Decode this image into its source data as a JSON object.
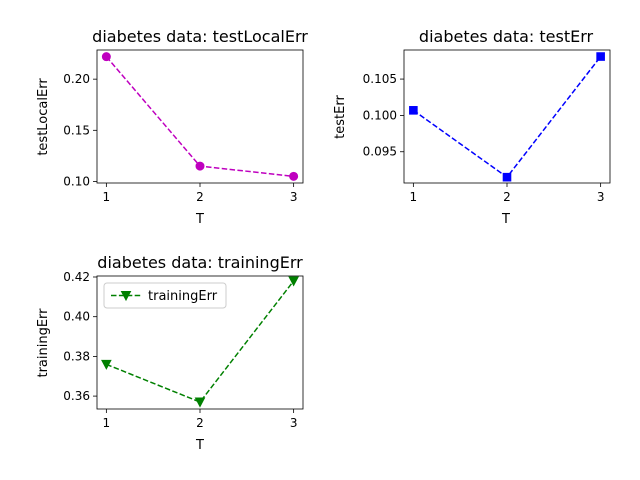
{
  "chart_data": [
    {
      "type": "line",
      "title": "diabetes data: testLocalErr",
      "xlabel": "T",
      "ylabel": "testLocalErr",
      "x": [
        1,
        2,
        3
      ],
      "xticks": [
        "1",
        "2",
        "3"
      ],
      "xlim": [
        0.9,
        3.1
      ],
      "ylim": [
        0.0985,
        0.2285
      ],
      "yticks": [
        "0.10",
        "0.15",
        "0.20"
      ],
      "ytick_values": [
        0.1,
        0.15,
        0.2
      ],
      "series": [
        {
          "values": [
            0.222,
            0.115,
            0.105
          ],
          "color": "#bf00bf",
          "marker": "circle",
          "linestyle": "dashed"
        }
      ],
      "grid": false,
      "legend": null
    },
    {
      "type": "line",
      "title": "diabetes data: testErr",
      "xlabel": "T",
      "ylabel": "testErr",
      "x": [
        1,
        2,
        3
      ],
      "xticks": [
        "1",
        "2",
        "3"
      ],
      "xlim": [
        0.9,
        3.1
      ],
      "ylim": [
        0.0907,
        0.109
      ],
      "yticks": [
        "0.095",
        "0.100",
        "0.105"
      ],
      "ytick_values": [
        0.095,
        0.1,
        0.105
      ],
      "series": [
        {
          "values": [
            0.1007,
            0.0915,
            0.1081
          ],
          "color": "#0000ff",
          "marker": "square",
          "linestyle": "dashed"
        }
      ],
      "grid": false,
      "legend": null
    },
    {
      "type": "line",
      "title": "diabetes data: trainingErr",
      "xlabel": "T",
      "ylabel": "trainingErr",
      "x": [
        1,
        2,
        3
      ],
      "xticks": [
        "1",
        "2",
        "3"
      ],
      "xlim": [
        0.9,
        3.1
      ],
      "ylim": [
        0.3535,
        0.4205
      ],
      "yticks": [
        "0.36",
        "0.38",
        "0.40",
        "0.42"
      ],
      "ytick_values": [
        0.36,
        0.38,
        0.4,
        0.42
      ],
      "series": [
        {
          "name": "trainingErr",
          "values": [
            0.376,
            0.357,
            0.418
          ],
          "color": "#008000",
          "marker": "triangle-down",
          "linestyle": "dashed"
        }
      ],
      "grid": false,
      "legend": "upper left"
    }
  ]
}
